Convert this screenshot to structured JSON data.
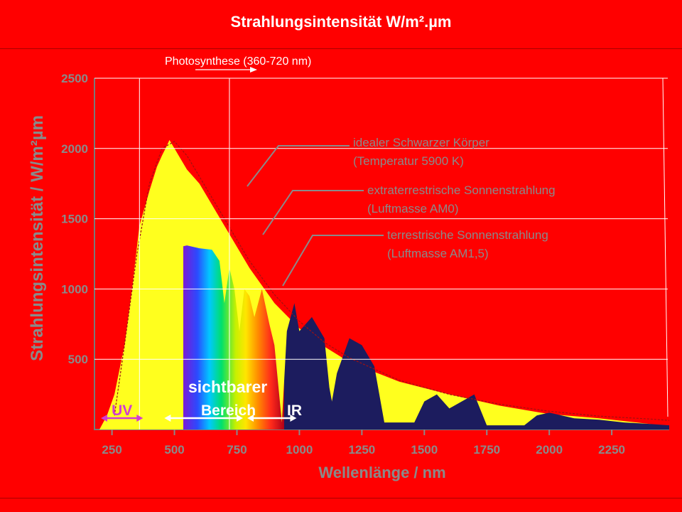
{
  "slide": {
    "title": "Strahlungsintensität W/m².µm",
    "photosynthesis_label": "Photosynthese (360-720 nm)",
    "photosynthesis_range_nm": [
      360,
      720
    ]
  },
  "colors": {
    "background": "#ff0000",
    "am0_fill": "#ffff1e",
    "am15_fill": "#1c1c5e",
    "ideal_curve": "#a01010",
    "label_gray": "#8a8a8a",
    "band_uv": "#d23cd2"
  },
  "chart_data": {
    "type": "area",
    "ylabel": "Strahlungsintensität  /  W/m²µm",
    "xlabel": "Wellenlänge / nm",
    "xlim": [
      180,
      2480
    ],
    "ylim": [
      0,
      2500
    ],
    "x_ticks": [
      "250",
      "500",
      "750",
      "1000",
      "1250",
      "1500",
      "1750",
      "2000",
      "2250"
    ],
    "y_ticks": [
      "500",
      "1000",
      "1500",
      "2000",
      "2500"
    ],
    "grid": true,
    "series": [
      {
        "name": "extraterrestrische Sonnenstrahlung (Luftmasse AM0)",
        "x": [
          200,
          230,
          260,
          300,
          330,
          360,
          400,
          430,
          450,
          470,
          480,
          500,
          550,
          600,
          700,
          800,
          900,
          1000,
          1100,
          1200,
          1400,
          1600,
          1800,
          2000,
          2200,
          2400,
          2480
        ],
        "y": [
          0,
          100,
          250,
          600,
          1000,
          1450,
          1700,
          1870,
          1950,
          2020,
          2060,
          2000,
          1850,
          1750,
          1450,
          1150,
          900,
          720,
          590,
          480,
          340,
          250,
          170,
          110,
          80,
          40,
          20
        ]
      },
      {
        "name": "terrestrische Sonnenstrahlung (Luftmasse AM1,5)",
        "x": [
          300,
          320,
          350,
          380,
          400,
          430,
          450,
          480,
          500,
          550,
          600,
          650,
          680,
          700,
          720,
          740,
          760,
          780,
          800,
          820,
          850,
          880,
          900,
          930,
          950,
          980,
          1000,
          1050,
          1100,
          1120,
          1130,
          1150,
          1200,
          1250,
          1300,
          1340,
          1400,
          1460,
          1500,
          1550,
          1600,
          1700,
          1750,
          1800,
          1850,
          1900,
          1950,
          2000,
          2100,
          2200,
          2300,
          2400,
          2480
        ],
        "y": [
          0,
          50,
          200,
          450,
          800,
          1150,
          1220,
          1250,
          1290,
          1310,
          1290,
          1280,
          1200,
          900,
          1150,
          1000,
          700,
          1000,
          950,
          800,
          1000,
          750,
          600,
          50,
          700,
          900,
          700,
          800,
          650,
          300,
          200,
          400,
          650,
          600,
          450,
          50,
          50,
          50,
          200,
          250,
          150,
          250,
          30,
          30,
          30,
          30,
          100,
          120,
          80,
          70,
          50,
          40,
          30
        ]
      },
      {
        "name": "idealer Schwarzer Körper (Temperatur 5900 K)",
        "x": [
          260,
          300,
          350,
          400,
          450,
          500,
          550,
          600,
          700,
          800,
          900,
          1000,
          1100,
          1200,
          1400,
          1600,
          1800,
          2000,
          2200,
          2400,
          2480
        ],
        "y": [
          100,
          600,
          1250,
          1750,
          2000,
          2050,
          1950,
          1800,
          1500,
          1200,
          960,
          770,
          620,
          510,
          350,
          250,
          180,
          130,
          95,
          75,
          65
        ]
      }
    ],
    "annotations": [
      {
        "text": "idealer Schwarzer Körper",
        "text2": "(Temperatur 5900 K)"
      },
      {
        "text": "extraterrestrische Sonnenstrahlung",
        "text2": "(Luftmasse AM0)"
      },
      {
        "text": "terrestrische Sonnenstrahlung",
        "text2": "(Luftmasse AM1,5)"
      }
    ],
    "bands": [
      {
        "label": "UV",
        "from": 200,
        "to": 380
      },
      {
        "label": "sichtbarer",
        "label2": "Bereich",
        "from": 380,
        "to": 780
      },
      {
        "label": "IR",
        "from": 780,
        "to": 1000
      }
    ]
  }
}
